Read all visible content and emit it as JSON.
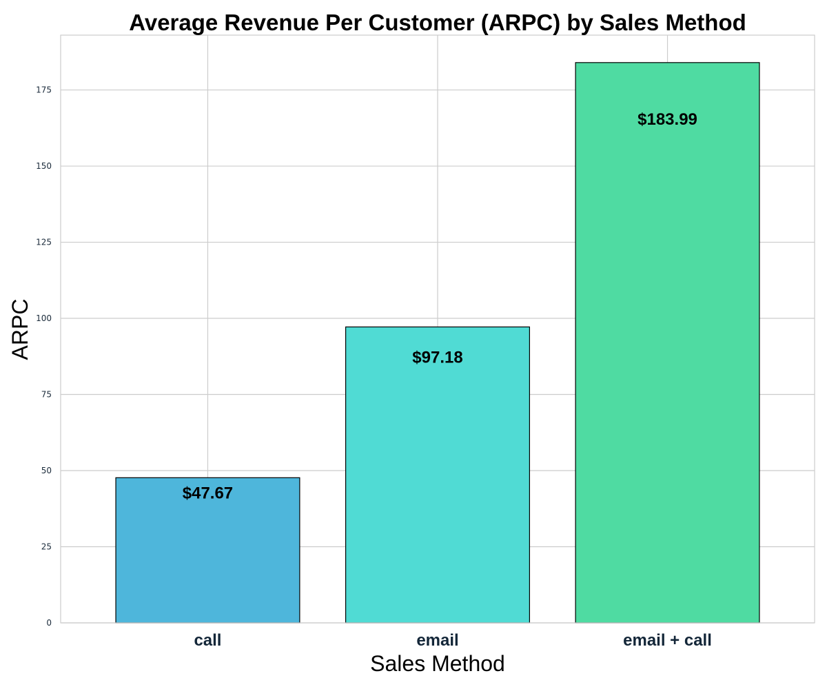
{
  "chart_data": {
    "type": "bar",
    "title": "Average Revenue Per Customer (ARPC) by Sales Method",
    "xlabel": "Sales Method",
    "ylabel": "ARPC",
    "categories": [
      "call",
      "email",
      "email + call"
    ],
    "values": [
      47.67,
      97.18,
      183.99
    ],
    "value_labels": [
      "$47.67",
      "$97.18",
      "$183.99"
    ],
    "colors": [
      "#4eb6db",
      "#50dbd4",
      "#4fdba2"
    ],
    "ylim": [
      0,
      193
    ],
    "yticks": [
      0,
      25,
      50,
      75,
      100,
      125,
      150,
      175
    ],
    "grid": true,
    "legend": "none"
  }
}
